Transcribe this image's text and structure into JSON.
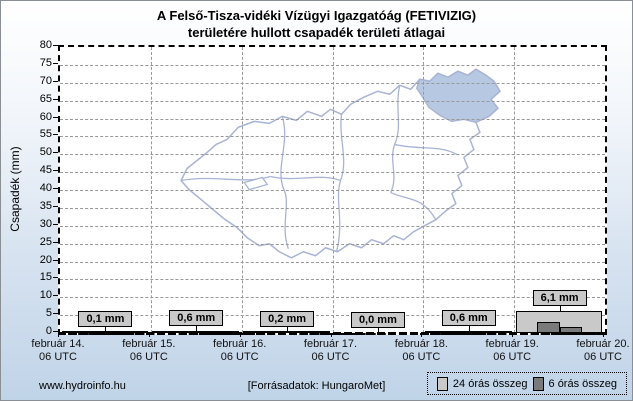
{
  "title": {
    "line1": "A Felső-Tisza-vidéki Vízügyi Igazgatóág (FETIVIZIG)",
    "line2": "területére hullott csapadék területi átlagai"
  },
  "y_axis": {
    "label": "Csapadék (mm)",
    "min": 0,
    "max": 80,
    "step": 5,
    "ticks": [
      0,
      5,
      10,
      15,
      20,
      25,
      30,
      35,
      40,
      45,
      50,
      55,
      60,
      65,
      70,
      75,
      80
    ]
  },
  "x_axis": {
    "ticks": [
      {
        "date": "február 14.",
        "time": "06 UTC"
      },
      {
        "date": "február 15.",
        "time": "06 UTC"
      },
      {
        "date": "február 16.",
        "time": "06 UTC"
      },
      {
        "date": "február 17.",
        "time": "06 UTC"
      },
      {
        "date": "február 18.",
        "time": "06 UTC"
      },
      {
        "date": "február 19.",
        "time": "06 UTC"
      },
      {
        "date": "február 20.",
        "time": "06 UTC"
      }
    ]
  },
  "chart_data": {
    "type": "bar",
    "title": "A Felső-Tisza-vidéki Vízügyi Igazgatóág (FETIVIZIG) területére hullott csapadék területi átlagai",
    "ylabel": "Csapadék (mm)",
    "ylim": [
      0,
      80
    ],
    "grid": true,
    "legend_position": "bottom-right",
    "categories": [
      "február 14-15.",
      "február 15-16.",
      "február 16-17.",
      "február 17-18.",
      "február 18-19.",
      "február 19-20."
    ],
    "series": [
      {
        "name": "24 órás összeg",
        "color": "#c9c9c9",
        "values": [
          0.1,
          0.6,
          0.2,
          0.0,
          0.6,
          6.1
        ],
        "value_labels": [
          "0,1 mm",
          "0,6 mm",
          "0,2 mm",
          "0,0 mm",
          "0,6 mm",
          "6,1 mm"
        ]
      },
      {
        "name": "6 órás összeg",
        "color": "#7a7a7a",
        "bars": [
          {
            "interval_index": 5,
            "sub_index": 1,
            "value": 3.2
          },
          {
            "interval_index": 5,
            "sub_index": 2,
            "value": 1.7
          }
        ]
      }
    ]
  },
  "legend": {
    "items": [
      {
        "label": "24 órás összeg",
        "color": "#c9c9c9"
      },
      {
        "label": "6 órás összeg",
        "color": "#7a7a7a"
      }
    ]
  },
  "footer": {
    "site": "www.hydroinfo.hu",
    "source": "[Forrásadatok: HungaroMet]"
  },
  "map": {
    "highlight_color": "#b7c9e2",
    "line_color": "#a9b4d4"
  }
}
